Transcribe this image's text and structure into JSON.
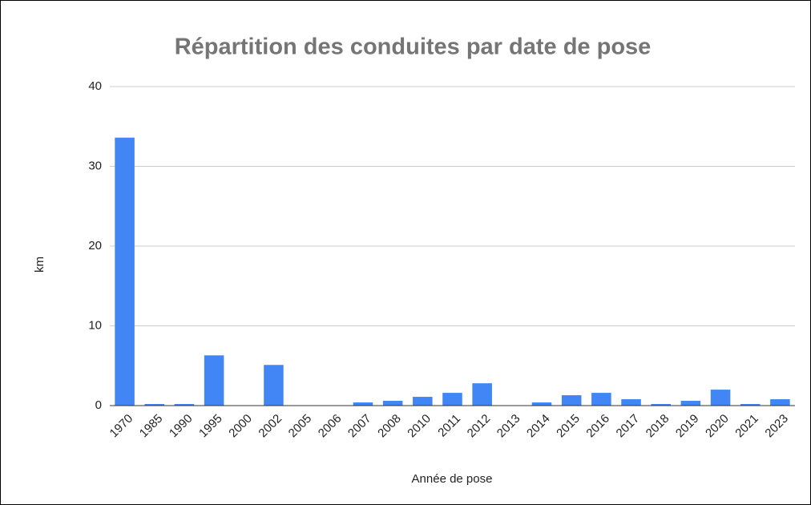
{
  "chart_data": {
    "type": "bar",
    "title": "Répartition des conduites par date de pose",
    "x_label": "Année de pose",
    "y_label": "km",
    "categories": [
      "1970",
      "1985",
      "1990",
      "1995",
      "2000",
      "2002",
      "2005",
      "2006",
      "2007",
      "2008",
      "2010",
      "2011",
      "2012",
      "2013",
      "2014",
      "2015",
      "2016",
      "2017",
      "2018",
      "2019",
      "2020",
      "2021",
      "2023"
    ],
    "values": [
      33.6,
      0.2,
      0.2,
      6.3,
      0,
      5.1,
      0,
      0,
      0.4,
      0.6,
      1.1,
      1.6,
      2.8,
      0,
      0.4,
      1.3,
      1.6,
      0.8,
      0.2,
      0.6,
      2.0,
      0.2,
      0.8
    ],
    "color": "#4285f4",
    "ylim": [
      0,
      40
    ],
    "yticks": [
      0,
      10,
      20,
      30,
      40
    ],
    "grid": true
  }
}
